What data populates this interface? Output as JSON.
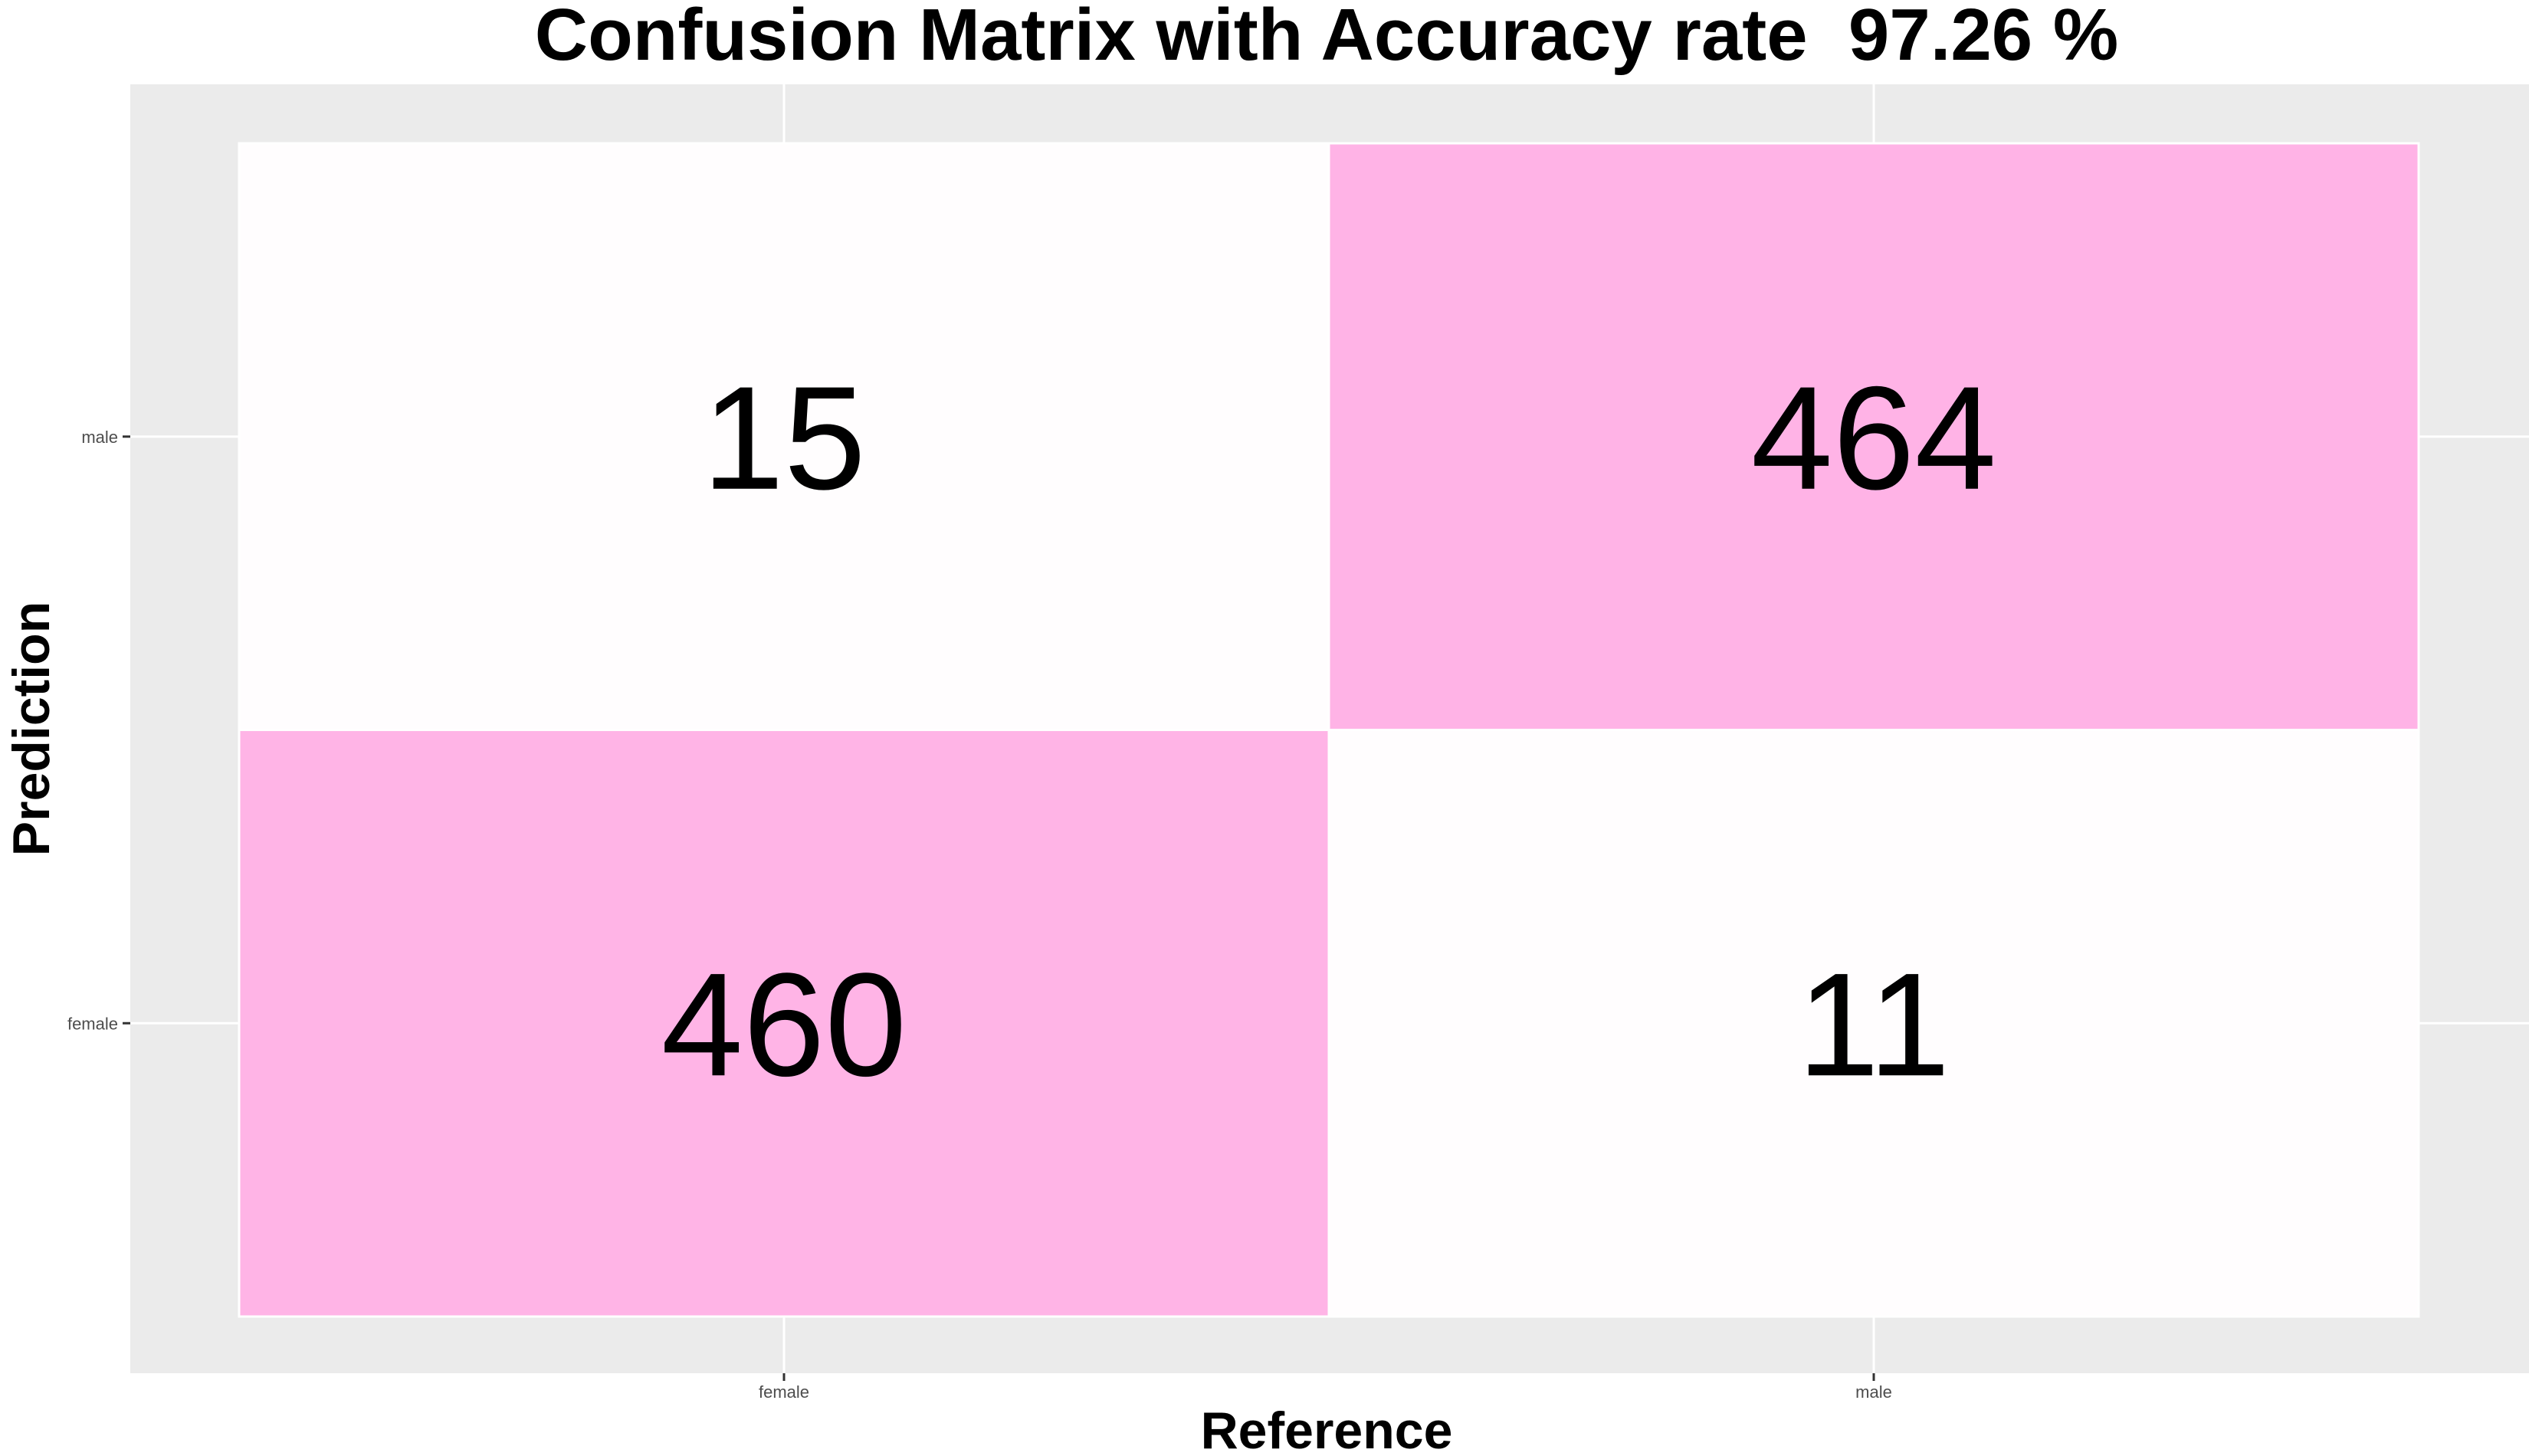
{
  "chart_data": {
    "type": "heatmap",
    "title": "Confusion Matrix with Accuracy rate  97.26 %",
    "xlabel": "Reference",
    "ylabel": "Prediction",
    "x_categories": [
      "female",
      "male"
    ],
    "y_categories": [
      "female",
      "male"
    ],
    "cells": [
      {
        "reference": "female",
        "prediction": "male",
        "value": 15
      },
      {
        "reference": "male",
        "prediction": "male",
        "value": 464
      },
      {
        "reference": "female",
        "prediction": "female",
        "value": 460
      },
      {
        "reference": "male",
        "prediction": "female",
        "value": 11
      }
    ],
    "value_range": [
      0,
      464
    ],
    "grid": true,
    "legend": "none",
    "colors": {
      "panel_background": "#ebebeb",
      "grid_line": "#ffffff",
      "low": "#ffffff",
      "high": "#ffb3e6"
    }
  }
}
